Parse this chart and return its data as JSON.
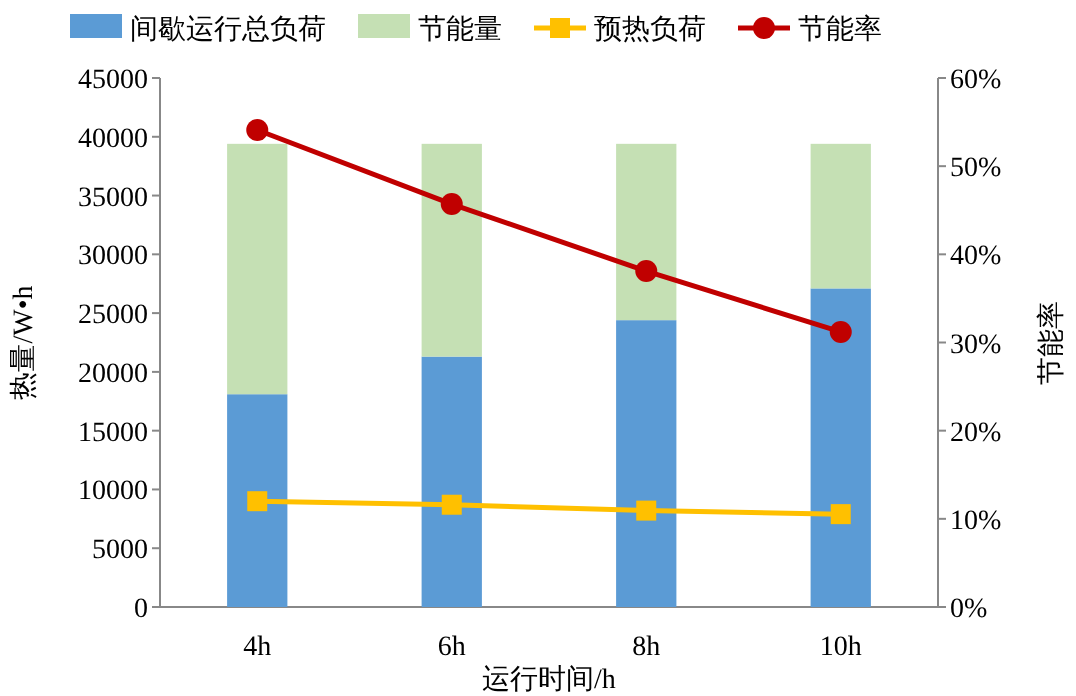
{
  "chart_data": {
    "type": "bar",
    "stacked": true,
    "xlabel": "运行时间/h",
    "ylabel": "热量/W•h",
    "y2label": "节能率",
    "categories": [
      "4h",
      "6h",
      "8h",
      "10h"
    ],
    "ylim": [
      0,
      45000
    ],
    "yticks": [
      0,
      5000,
      10000,
      15000,
      20000,
      25000,
      30000,
      35000,
      40000,
      45000
    ],
    "y2lim": [
      0,
      60
    ],
    "y2ticks": [
      {
        "value": 0,
        "label": "0%"
      },
      {
        "value": 10,
        "label": "10%"
      },
      {
        "value": 20,
        "label": "20%"
      },
      {
        "value": 30,
        "label": "30%"
      },
      {
        "value": 40,
        "label": "40%"
      },
      {
        "value": 50,
        "label": "50%"
      },
      {
        "value": 60,
        "label": "60%"
      }
    ],
    "legend": "top",
    "grid": false,
    "series": [
      {
        "name": "间歇运行总负荷",
        "color": "#5b9bd5",
        "values": [
          18100,
          21300,
          24400,
          27100
        ]
      },
      {
        "name": "节能量",
        "color": "#c5e0b4",
        "values": [
          21300,
          18100,
          15000,
          12300
        ]
      },
      {
        "name": "预热负荷",
        "type": "line",
        "marker": "square",
        "color": "#ffc000",
        "values": [
          9000,
          8700,
          8200,
          7900
        ]
      },
      {
        "name": "节能率",
        "type": "line",
        "marker": "circle",
        "axis": "y2",
        "color": "#c00000",
        "values": [
          54.1,
          45.7,
          38.1,
          31.2
        ]
      }
    ]
  }
}
